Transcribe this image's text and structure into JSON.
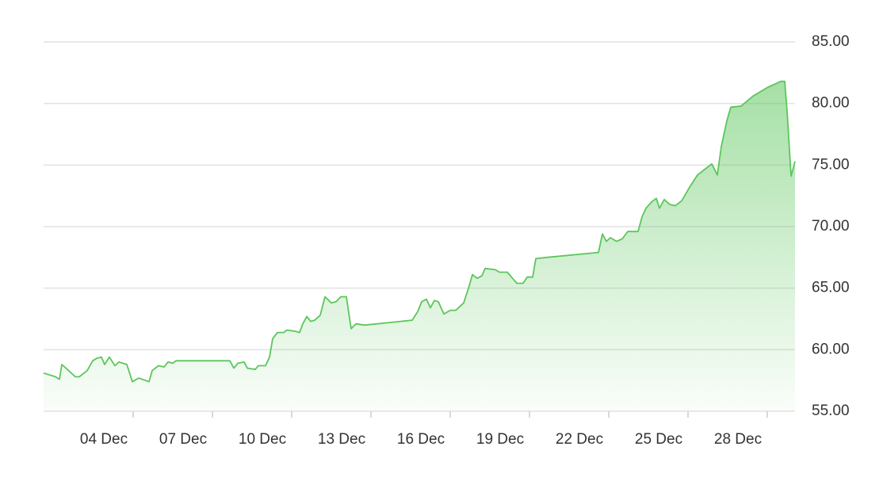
{
  "chart_data": {
    "type": "area",
    "x": [
      0.61,
      1.06,
      1.21,
      1.3,
      1.51,
      1.81,
      1.96,
      2.26,
      2.47,
      2.62,
      2.8,
      2.92,
      3.1,
      3.31,
      3.46,
      3.76,
      3.97,
      4.21,
      4.6,
      4.72,
      4.96,
      5.17,
      5.32,
      5.5,
      5.62,
      7.66,
      7.81,
      7.96,
      8.2,
      8.32,
      8.62,
      8.74,
      9.01,
      9.16,
      9.28,
      9.46,
      9.7,
      9.82,
      10.12,
      10.3,
      10.42,
      10.57,
      10.72,
      10.87,
      11.08,
      11.26,
      11.5,
      11.68,
      11.86,
      12.07,
      12.25,
      12.43,
      12.76,
      14.56,
      14.77,
      14.92,
      15.1,
      15.25,
      15.4,
      15.55,
      15.76,
      16.0,
      16.21,
      16.51,
      16.72,
      16.84,
      17.02,
      17.2,
      17.32,
      17.71,
      17.86,
      18.16,
      18.4,
      18.52,
      18.76,
      18.91,
      19.12,
      19.24,
      19.66,
      21.61,
      21.76,
      21.91,
      22.06,
      22.3,
      22.51,
      22.72,
      23.11,
      23.26,
      23.41,
      23.62,
      23.8,
      23.92,
      24.1,
      24.31,
      24.52,
      24.76,
      25.06,
      25.36,
      25.66,
      25.9,
      26.11,
      26.26,
      26.47,
      26.62,
      27.01,
      27.46,
      28.0,
      28.51,
      28.66,
      28.75,
      28.9,
      29.05
    ],
    "values": [
      58.1,
      57.8,
      57.6,
      58.8,
      58.4,
      57.8,
      57.8,
      58.3,
      59.1,
      59.3,
      59.4,
      58.8,
      59.4,
      58.7,
      59.0,
      58.8,
      57.4,
      57.7,
      57.4,
      58.3,
      58.7,
      58.6,
      59.0,
      58.9,
      59.1,
      59.1,
      58.5,
      58.9,
      59.0,
      58.5,
      58.4,
      58.7,
      58.7,
      59.4,
      60.9,
      61.4,
      61.4,
      61.6,
      61.5,
      61.4,
      62.1,
      62.7,
      62.3,
      62.4,
      62.8,
      64.3,
      63.8,
      63.9,
      64.3,
      64.3,
      61.7,
      62.1,
      62.0,
      62.4,
      63.1,
      63.9,
      64.1,
      63.4,
      64.0,
      63.9,
      62.9,
      63.2,
      63.2,
      63.8,
      65.2,
      66.1,
      65.8,
      66.0,
      66.6,
      66.5,
      66.3,
      66.3,
      65.7,
      65.4,
      65.4,
      65.9,
      65.9,
      67.4,
      67.5,
      67.9,
      69.4,
      68.8,
      69.1,
      68.8,
      69.0,
      69.6,
      69.6,
      70.8,
      71.5,
      72.0,
      72.3,
      71.5,
      72.2,
      71.8,
      71.7,
      72.1,
      73.2,
      74.2,
      74.7,
      75.1,
      74.2,
      76.5,
      78.6,
      79.7,
      79.8,
      80.6,
      81.3,
      81.8,
      81.8,
      79.4,
      74.1,
      75.3
    ],
    "color": "#5cc65c",
    "xlim": [
      0.61,
      29.05
    ],
    "xticks": [
      {
        "value": 4,
        "label": "04 Dec"
      },
      {
        "value": 7,
        "label": "07 Dec"
      },
      {
        "value": 10,
        "label": "10 Dec"
      },
      {
        "value": 13,
        "label": "13 Dec"
      },
      {
        "value": 16,
        "label": "16 Dec"
      },
      {
        "value": 19,
        "label": "19 Dec"
      },
      {
        "value": 22,
        "label": "22 Dec"
      },
      {
        "value": 25,
        "label": "25 Dec"
      },
      {
        "value": 28,
        "label": "28 Dec"
      }
    ],
    "ylim": [
      55,
      85
    ],
    "yticks": [
      {
        "value": 55,
        "label": "55.00"
      },
      {
        "value": 60,
        "label": "60.00"
      },
      {
        "value": 65,
        "label": "65.00"
      },
      {
        "value": 70,
        "label": "70.00"
      },
      {
        "value": 75,
        "label": "75.00"
      },
      {
        "value": 80,
        "label": "80.00"
      },
      {
        "value": 85,
        "label": "85.00"
      }
    ],
    "grid": true
  }
}
